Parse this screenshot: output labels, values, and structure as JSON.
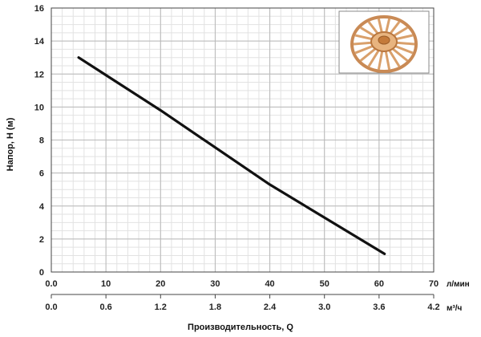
{
  "chart_data": {
    "type": "line",
    "ylabel": "Напор, H (м)",
    "xlabel": "Производительность, Q",
    "x_unit_primary": "л/мин",
    "x_unit_secondary": "м³/ч",
    "xlim": [
      0,
      70
    ],
    "ylim": [
      0,
      16
    ],
    "x_ticks": [
      0,
      10,
      20,
      30,
      40,
      50,
      60,
      70
    ],
    "x_tick_labels": [
      "0.0",
      "10",
      "20",
      "30",
      "40",
      "50",
      "60",
      "70"
    ],
    "x2_ticks": [
      0,
      10,
      20,
      30,
      40,
      50,
      60,
      70
    ],
    "x2_tick_labels": [
      "0.0",
      "0.6",
      "1.2",
      "1.8",
      "2.4",
      "3.0",
      "3.6",
      "4.2"
    ],
    "y_ticks": [
      0,
      2,
      4,
      6,
      8,
      10,
      12,
      14,
      16
    ],
    "y_tick_labels": [
      "0",
      "2",
      "4",
      "6",
      "8",
      "10",
      "12",
      "14",
      "16"
    ],
    "grid": true,
    "series": [
      {
        "x": [
          5,
          20,
          40,
          61
        ],
        "y": [
          13,
          9.8,
          5.3,
          1.1
        ]
      }
    ],
    "inset_image": "impeller-icon",
    "colors": {
      "line": "#111111",
      "grid_major": "#b9b9b9",
      "grid_minor": "#e2e2e2",
      "impeller": "#d9a06b"
    }
  }
}
